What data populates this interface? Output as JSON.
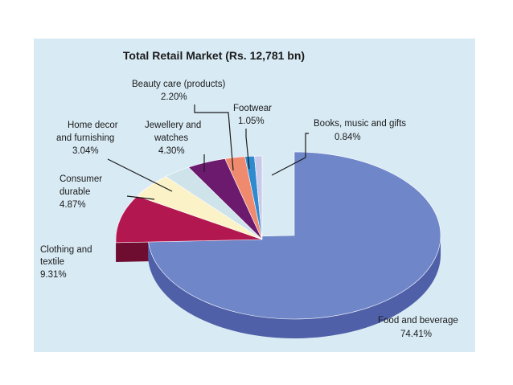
{
  "chart_data": {
    "type": "pie",
    "title": "Total Retail Market (Rs. 12,781 bn)",
    "slices": [
      {
        "label": "Food and beverage",
        "value": 74.41,
        "display": "74.41%",
        "color": "#6f86c9",
        "side": "#4f60a8"
      },
      {
        "label": "Clothing and textile",
        "value": 9.31,
        "display": "9.31%",
        "color": "#b3174f",
        "side": "#6f0d31"
      },
      {
        "label": "Consumer durable",
        "value": 4.87,
        "display": "4.87%",
        "color": "#fbf2c8",
        "side": "#c9c096"
      },
      {
        "label": "Home decor and furnishing",
        "value": 3.04,
        "display": "3.04%",
        "color": "#cfe3ea",
        "side": "#9fb3ba"
      },
      {
        "label": "Jewellery and watches",
        "value": 4.3,
        "display": "4.30%",
        "color": "#6b1a6e",
        "side": "#3f0a42"
      },
      {
        "label": "Beauty care (products)",
        "value": 2.2,
        "display": "2.20%",
        "color": "#f08a6e",
        "side": "#b85a44"
      },
      {
        "label": "Footwear",
        "value": 1.05,
        "display": "1.05%",
        "color": "#2f8ad0",
        "side": "#1c5a8c"
      },
      {
        "label": "Books, music and gifts",
        "value": 0.84,
        "display": "0.84%",
        "color": "#c9c9ea",
        "side": "#8f8fb8"
      }
    ]
  }
}
